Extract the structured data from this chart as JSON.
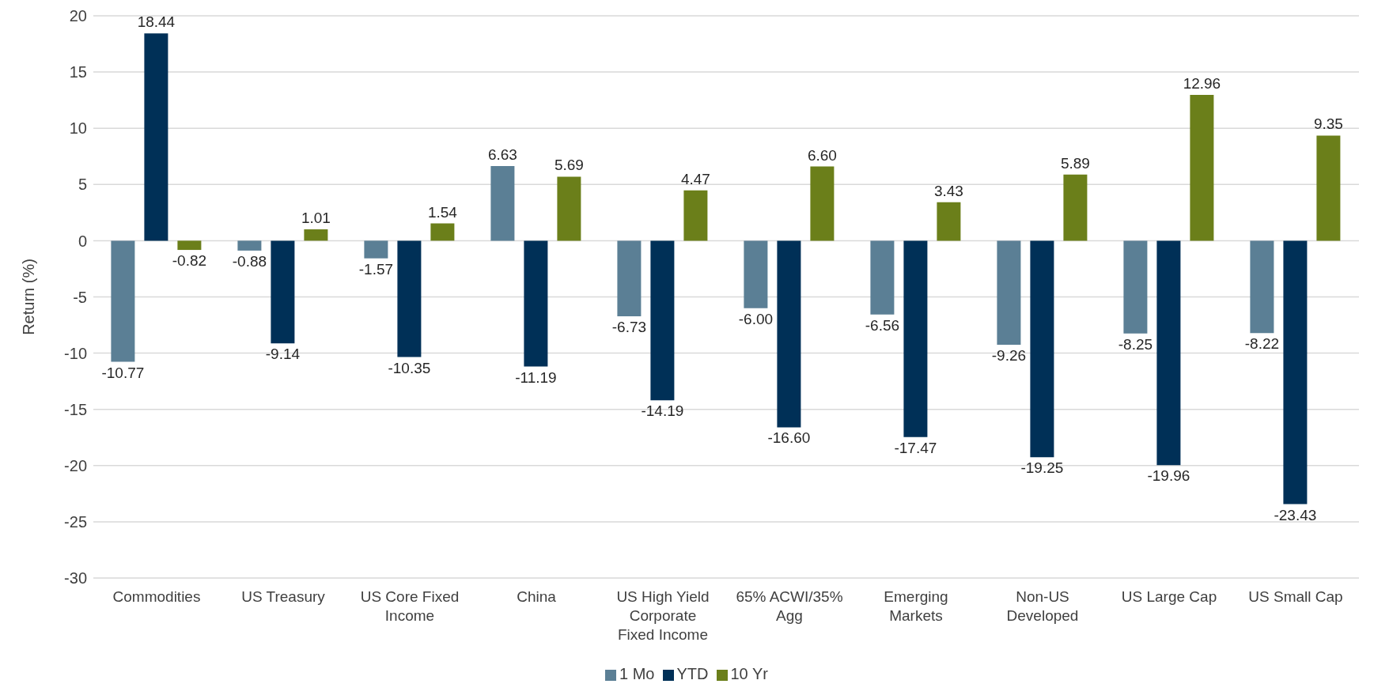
{
  "chart_data": {
    "type": "bar",
    "ylabel": "Return (%)",
    "categories": [
      "Commodities",
      "US Treasury",
      "US Core Fixed Income",
      "China",
      "US High Yield Corporate Fixed Income",
      "65% ACWI/35% Agg",
      "Emerging Markets",
      "Non-US Developed",
      "US Large Cap",
      "US Small Cap"
    ],
    "series": [
      {
        "name": "1 Mo",
        "color": "#5b7f95",
        "values": [
          -10.77,
          -0.88,
          -1.57,
          6.63,
          -6.73,
          -6.0,
          -6.56,
          -9.26,
          -8.25,
          -8.22
        ],
        "value_labels": [
          "-10.77",
          "-0.88",
          "-1.57",
          "6.63",
          "-6.73",
          "-6.00",
          "-6.56",
          "-9.26",
          "-8.25",
          "-8.22"
        ]
      },
      {
        "name": "YTD",
        "color": "#003057",
        "values": [
          18.44,
          -9.14,
          -10.35,
          -11.19,
          -14.19,
          -16.6,
          -17.47,
          -19.25,
          -19.96,
          -23.43
        ],
        "value_labels": [
          "18.44",
          "-9.14",
          "-10.35",
          "-11.19",
          "-14.19",
          "-16.60",
          "-17.47",
          "-19.25",
          "-19.96",
          "-23.43"
        ]
      },
      {
        "name": "10 Yr",
        "color": "#6b7f1a",
        "values": [
          -0.82,
          1.01,
          1.54,
          5.69,
          4.47,
          6.6,
          3.43,
          5.89,
          12.96,
          9.35
        ],
        "value_labels": [
          "-0.82",
          "1.01",
          "1.54",
          "5.69",
          "4.47",
          "6.60",
          "3.43",
          "5.89",
          "12.96",
          "9.35"
        ]
      }
    ],
    "ylim": [
      -30,
      20
    ],
    "yticks": [
      -30,
      -25,
      -20,
      -15,
      -10,
      -5,
      0,
      5,
      10,
      15,
      20
    ],
    "grid": "y",
    "legend": "bottom"
  }
}
